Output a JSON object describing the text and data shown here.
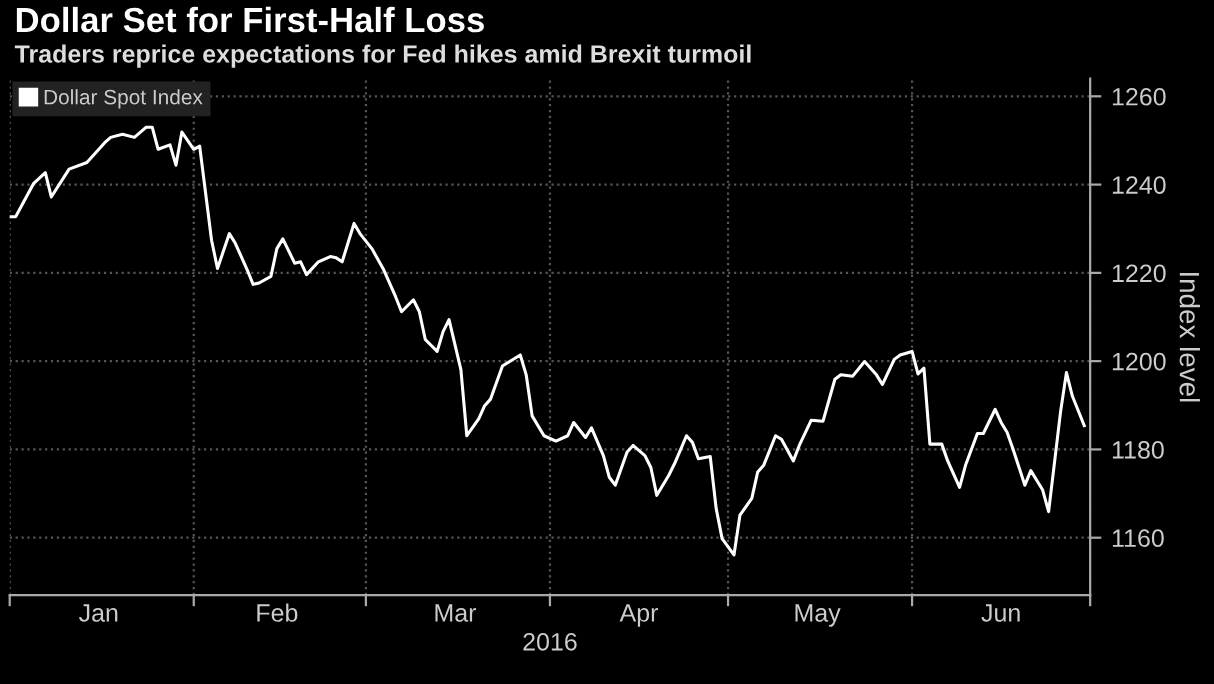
{
  "chart_data": {
    "type": "line",
    "title": "Dollar Set for First-Half Loss",
    "subtitle": "Traders reprice expectations for Fed hikes amid Brexit turmoil",
    "ylabel": "Index level",
    "xlabel": "2016",
    "legend": "top left",
    "grid": true,
    "line_style": "solid",
    "marker": "none",
    "xlim": [
      "2016-01-01",
      "2016-07-01"
    ],
    "ylim": [
      1147,
      1264
    ],
    "yticks": [
      1160,
      1180,
      1200,
      1220,
      1240,
      1260
    ],
    "xticks": [
      {
        "value": "2016-01-01",
        "label": null
      },
      {
        "value": "2016-01-16",
        "label": "Jan"
      },
      {
        "value": "2016-02-01",
        "label": null
      },
      {
        "value": "2016-02-15",
        "label": "Feb"
      },
      {
        "value": "2016-03-01",
        "label": null
      },
      {
        "value": "2016-03-16",
        "label": "Mar"
      },
      {
        "value": "2016-04-01",
        "label": null
      },
      {
        "value": "2016-04-16",
        "label": "Apr"
      },
      {
        "value": "2016-05-01",
        "label": null
      },
      {
        "value": "2016-05-16",
        "label": "May"
      },
      {
        "value": "2016-06-01",
        "label": null
      },
      {
        "value": "2016-06-16",
        "label": "Jun"
      },
      {
        "value": "2016-07-01",
        "label": null
      }
    ],
    "series": [
      {
        "name": "Dollar Spot Index",
        "color": "#ffffff",
        "x": [
          "2016-01-01",
          "2016-01-02",
          "2016-01-05",
          "2016-01-07",
          "2016-01-08",
          "2016-01-11",
          "2016-01-14",
          "2016-01-17",
          "2016-01-18",
          "2016-01-20",
          "2016-01-22",
          "2016-01-24",
          "2016-01-25",
          "2016-01-26",
          "2016-01-28",
          "2016-01-29",
          "2016-01-30",
          "2016-02-01",
          "2016-02-02",
          "2016-02-04",
          "2016-02-05",
          "2016-02-07",
          "2016-02-08",
          "2016-02-10",
          "2016-02-11",
          "2016-02-12",
          "2016-02-14",
          "2016-02-15",
          "2016-02-16",
          "2016-02-18",
          "2016-02-19",
          "2016-02-20",
          "2016-02-22",
          "2016-02-24",
          "2016-02-25",
          "2016-02-26",
          "2016-02-28",
          "2016-02-29",
          "2016-03-02",
          "2016-03-04",
          "2016-03-06",
          "2016-03-07",
          "2016-03-09",
          "2016-03-10",
          "2016-03-11",
          "2016-03-13",
          "2016-03-14",
          "2016-03-15",
          "2016-03-17",
          "2016-03-18",
          "2016-03-20",
          "2016-03-21",
          "2016-03-22",
          "2016-03-24",
          "2016-03-27",
          "2016-03-28",
          "2016-03-29",
          "2016-03-31",
          "2016-04-02",
          "2016-04-04",
          "2016-04-05",
          "2016-04-07",
          "2016-04-08",
          "2016-04-10",
          "2016-04-11",
          "2016-04-12",
          "2016-04-14",
          "2016-04-15",
          "2016-04-17",
          "2016-04-18",
          "2016-04-19",
          "2016-04-21",
          "2016-04-22",
          "2016-04-24",
          "2016-04-25",
          "2016-04-26",
          "2016-04-28",
          "2016-04-29",
          "2016-04-30",
          "2016-05-02",
          "2016-05-03",
          "2016-05-05",
          "2016-05-06",
          "2016-05-07",
          "2016-05-09",
          "2016-05-10",
          "2016-05-12",
          "2016-05-13",
          "2016-05-15",
          "2016-05-17",
          "2016-05-19",
          "2016-05-20",
          "2016-05-22",
          "2016-05-24",
          "2016-05-26",
          "2016-05-27",
          "2016-05-29",
          "2016-05-30",
          "2016-06-01",
          "2016-06-02",
          "2016-06-03",
          "2016-06-04",
          "2016-06-06",
          "2016-06-07",
          "2016-06-09",
          "2016-06-10",
          "2016-06-12",
          "2016-06-13",
          "2016-06-15",
          "2016-06-16",
          "2016-06-17",
          "2016-06-18",
          "2016-06-20",
          "2016-06-21",
          "2016-06-23",
          "2016-06-24",
          "2016-06-26",
          "2016-06-27",
          "2016-06-28",
          "2016-06-30"
        ],
        "values": [
          1232.7,
          1232.7,
          1240.2,
          1242.7,
          1237.2,
          1243.5,
          1245,
          1249.5,
          1250.7,
          1251.4,
          1250.7,
          1253,
          1253,
          1248,
          1249,
          1244.4,
          1251.9,
          1248,
          1248.7,
          1227.4,
          1221,
          1228.9,
          1226.7,
          1220.7,
          1217.4,
          1217.7,
          1219.2,
          1225.5,
          1227.7,
          1222.2,
          1222.5,
          1219.6,
          1222.5,
          1223.7,
          1223.4,
          1222.5,
          1231.2,
          1228.9,
          1225.5,
          1220.7,
          1214.6,
          1211.2,
          1213.9,
          1211.2,
          1204.9,
          1202.2,
          1206.7,
          1209.4,
          1198.1,
          1183.1,
          1186.9,
          1189.9,
          1191.4,
          1198.9,
          1201.4,
          1196.9,
          1187.6,
          1183.1,
          1181.9,
          1183.1,
          1186.1,
          1182.7,
          1184.9,
          1178.6,
          1173.7,
          1171.9,
          1179.4,
          1180.9,
          1178.6,
          1175.9,
          1169.6,
          1174.1,
          1176.8,
          1183.1,
          1181.6,
          1177.9,
          1178.4,
          1166.6,
          1159.8,
          1156.1,
          1165.1,
          1168.9,
          1174.9,
          1176.4,
          1183.1,
          1182.3,
          1177.4,
          1180.9,
          1186.6,
          1186.4,
          1195.9,
          1196.9,
          1196.6,
          1199.9,
          1196.9,
          1194.7,
          1200.4,
          1201.4,
          1202.2,
          1197.1,
          1198.4,
          1181.2,
          1181.2,
          1177.4,
          1171.4,
          1176.4,
          1183.6,
          1183.6,
          1189.1,
          1186.1,
          1183.9,
          1180.1,
          1171.9,
          1175.2,
          1170.8,
          1165.9,
          1188.4,
          1197.4,
          1192.1,
          1185.4
        ]
      }
    ]
  }
}
